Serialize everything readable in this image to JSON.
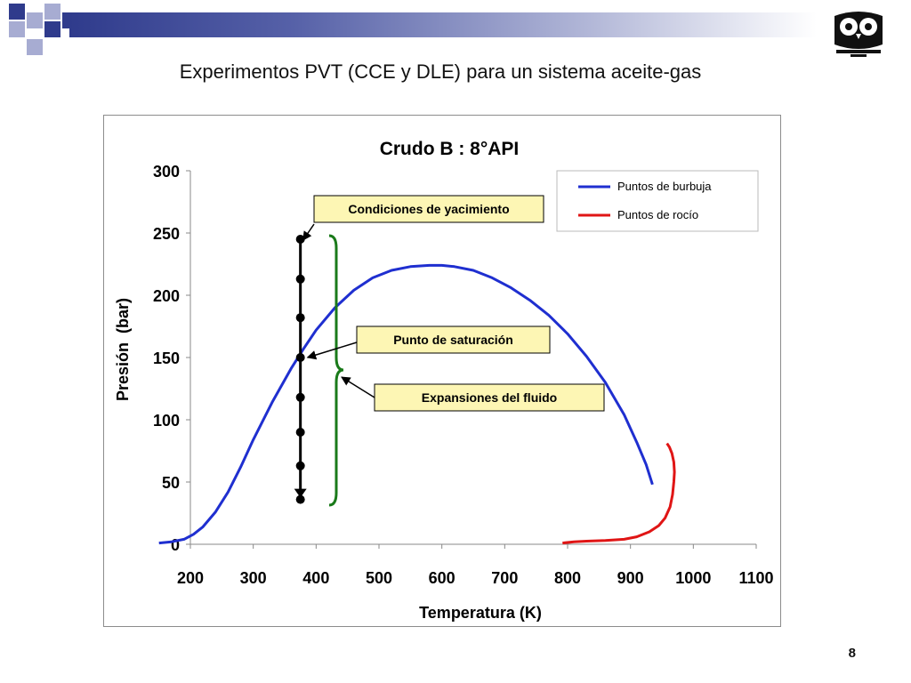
{
  "slide": {
    "title": "Experimentos PVT (CCE y DLE) para un sistema aceite-gas",
    "page_number": "8",
    "logo_icon": "owl-logo-icon"
  },
  "colors": {
    "decor_dark": "#2f3b8c",
    "decor_light": "#a7acd2",
    "bubble": "#1f2fd0",
    "dew": "#e01515",
    "bracket": "#1a7a1a",
    "label_fill": "#fdf6b4"
  },
  "chart_data": {
    "type": "line",
    "title": "Crudo B : 8°API",
    "xlabel": "Temperatura (K)",
    "ylabel": "Presión  (bar)",
    "xlim": [
      200,
      1100
    ],
    "ylim": [
      0,
      300
    ],
    "xticks": [
      200,
      300,
      400,
      500,
      600,
      700,
      800,
      900,
      1000,
      1100
    ],
    "yticks": [
      0,
      50,
      100,
      150,
      200,
      250,
      300
    ],
    "grid": false,
    "legend_position": "top-right",
    "series": [
      {
        "name": "Puntos de burbuja",
        "color": "#1f2fd0",
        "x": [
          150,
          170,
          190,
          205,
          220,
          240,
          260,
          280,
          300,
          330,
          360,
          380,
          400,
          430,
          460,
          490,
          520,
          550,
          580,
          600,
          620,
          650,
          680,
          710,
          740,
          770,
          800,
          830,
          860,
          890,
          910,
          925,
          935
        ],
        "y": [
          1,
          2,
          4,
          8,
          14,
          26,
          42,
          62,
          84,
          114,
          141,
          157,
          172,
          190,
          204,
          214,
          220,
          223,
          224,
          224,
          223,
          220,
          214,
          206,
          196,
          184,
          169,
          151,
          130,
          104,
          82,
          64,
          48
        ]
      },
      {
        "name": "Puntos de rocío",
        "color": "#e01515",
        "x": [
          792,
          810,
          830,
          860,
          890,
          910,
          930,
          945,
          955,
          963,
          967,
          969,
          970,
          969,
          966,
          962,
          958
        ],
        "y": [
          1,
          2,
          2.5,
          3,
          4,
          6,
          10,
          15,
          21,
          30,
          40,
          50,
          58,
          66,
          73,
          78,
          81
        ]
      }
    ],
    "expansion_points": {
      "x": 375,
      "y": [
        245,
        213,
        182,
        150,
        118,
        90,
        63,
        36
      ]
    },
    "annotations": {
      "conditions": "Condiciones de yacimiento",
      "saturation": "Punto de saturación",
      "expansions": "Expansiones del fluido"
    }
  }
}
